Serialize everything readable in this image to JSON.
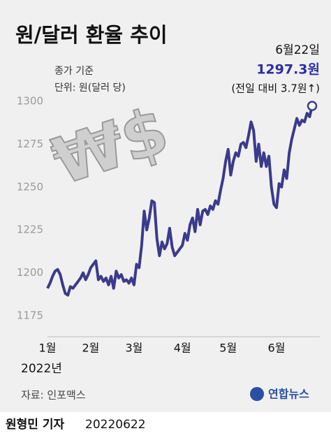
{
  "chart_data": {
    "type": "line",
    "title": "원/달러 환율 추이",
    "subtitle": "종가 기준",
    "unit": "단위: 원(달러 당)",
    "symbol": "₩$",
    "annotations": [
      "6월22일",
      "(전일 대비 3.7원↑)"
    ],
    "x_label": "2022년",
    "source": "자료: 인포맥스",
    "byline": "원형민 기자",
    "date": "20220622",
    "logo": "연합뉴스",
    "categories": [
      "1월",
      null,
      null,
      null,
      null,
      null,
      null,
      null,
      null,
      null,
      null,
      null,
      null,
      null,
      null,
      null,
      null,
      "2월",
      null,
      null,
      null,
      null,
      null,
      null,
      null,
      null,
      null,
      null,
      null,
      null,
      null,
      null,
      null,
      null,
      "3월",
      null,
      null,
      null,
      null,
      null,
      null,
      null,
      null,
      null,
      null,
      null,
      null,
      null,
      null,
      null,
      null,
      null,
      null,
      "4월",
      null,
      null,
      null,
      null,
      null,
      null,
      null,
      null,
      null,
      null,
      null,
      null,
      null,
      null,
      null,
      null,
      null,
      "5월",
      null,
      null,
      null,
      null,
      null,
      null,
      null,
      null,
      null,
      null,
      null,
      null,
      null,
      null,
      null,
      null,
      null,
      null,
      "6월",
      null,
      null,
      null,
      null,
      null,
      null,
      null,
      null,
      null,
      null,
      null,
      null,
      null,
      null
    ],
    "series": [
      {
        "name": "원/달러 환율",
        "color": "#3b3a8c",
        "values": [
          1191,
          1194,
          1198,
          1201,
          1202,
          1199,
          1193,
          1188,
          1187,
          1192,
          1191,
          1193,
          1195,
          1197,
          1200,
          1196,
          1199,
          1203,
          1205,
          1207,
          1196,
          1198,
          1195,
          1197,
          1193,
          1198,
          1191,
          1201,
          1197,
          1199,
          1195,
          1196,
          1194,
          1197,
          1193,
          1205,
          1203,
          1216,
          1236,
          1225,
          1232,
          1242,
          1241,
          1220,
          1210,
          1218,
          1214,
          1217,
          1226,
          1215,
          1210,
          1212,
          1214,
          1216,
          1223,
          1219,
          1228,
          1232,
          1224,
          1237,
          1228,
          1236,
          1237,
          1234,
          1239,
          1237,
          1242,
          1240,
          1248,
          1255,
          1265,
          1272,
          1257,
          1265,
          1270,
          1268,
          1275,
          1276,
          1273,
          1280,
          1288,
          1283,
          1265,
          1275,
          1262,
          1270,
          1262,
          1268,
          1250,
          1240,
          1238,
          1252,
          1250,
          1260,
          1255,
          1270,
          1278,
          1284,
          1290,
          1286,
          1289,
          1288,
          1293,
          1291,
          1297.3
        ],
        "value_labels": [
          null,
          null,
          null,
          null,
          null,
          null,
          null,
          null,
          null,
          null,
          null,
          null,
          null,
          null,
          null,
          null,
          null,
          null,
          null,
          null,
          null,
          null,
          null,
          null,
          null,
          null,
          null,
          null,
          null,
          null,
          null,
          null,
          null,
          null,
          null,
          null,
          null,
          null,
          null,
          null,
          null,
          null,
          null,
          null,
          null,
          null,
          null,
          null,
          null,
          null,
          null,
          null,
          null,
          null,
          null,
          null,
          null,
          null,
          null,
          null,
          null,
          null,
          null,
          null,
          null,
          null,
          null,
          null,
          null,
          null,
          null,
          null,
          null,
          null,
          null,
          null,
          null,
          null,
          null,
          null,
          null,
          null,
          null,
          null,
          null,
          null,
          null,
          null,
          null,
          null,
          null,
          null,
          null,
          null,
          null,
          null,
          null,
          null,
          null,
          null,
          null,
          null,
          null,
          null,
          "1297.3원"
        ]
      }
    ],
    "ylim": [
      1175,
      1300
    ],
    "yticks": [
      1175,
      1200,
      1225,
      1250,
      1275,
      1300
    ],
    "grid": false
  }
}
